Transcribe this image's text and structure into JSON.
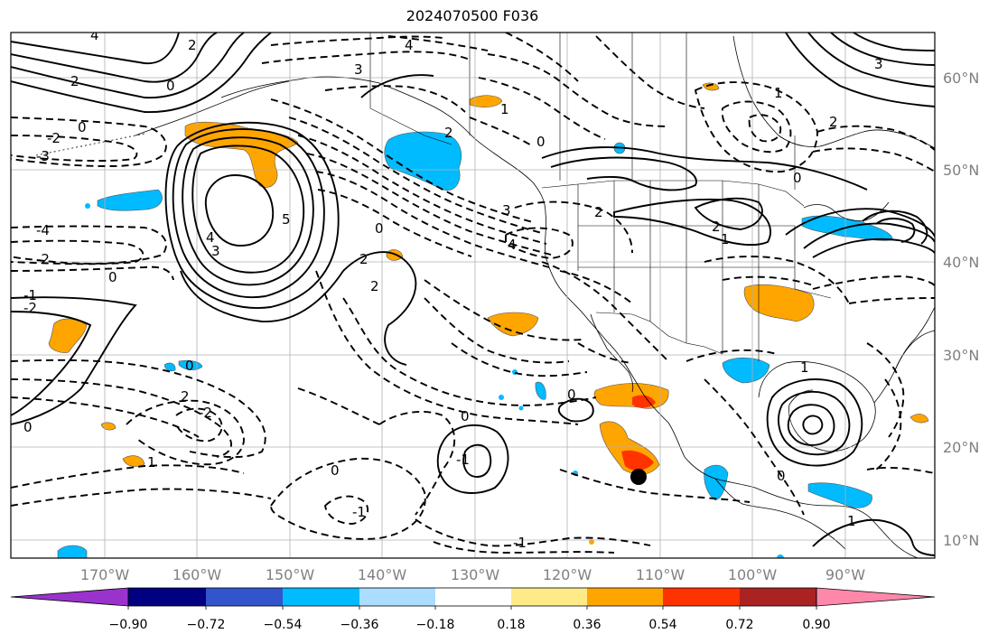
{
  "title": "2024070500 F036",
  "lat_labels": [
    "60°N",
    "50°N",
    "40°N",
    "30°N",
    "20°N",
    "10°N"
  ],
  "lon_labels": [
    "170°W",
    "160°W",
    "150°W",
    "140°W",
    "130°W",
    "120°W",
    "110°W",
    "100°W",
    "90°W"
  ],
  "colorbar": {
    "ticks": [
      "−0.90",
      "−0.72",
      "−0.54",
      "−0.36",
      "−0.18",
      "0.18",
      "0.36",
      "0.54",
      "0.72",
      "0.90"
    ],
    "colors": [
      "#9933cc",
      "#000080",
      "#3355cc",
      "#00bbff",
      "#aaddff",
      "#ffffff",
      "#ffea88",
      "#ffa500",
      "#ff3300",
      "#aa2222",
      "#ff88aa"
    ]
  },
  "contour_labels": [
    "4",
    "2",
    "0",
    "2",
    "3",
    "4",
    "3",
    "1",
    "0",
    "-2",
    "-3",
    "4",
    "3",
    "5",
    "0",
    "2",
    "2",
    "3",
    "4",
    "0",
    "2",
    "1",
    "2",
    "-4",
    "-2",
    "0",
    "-1",
    "-2",
    "0",
    "2",
    "2",
    "1",
    "1",
    "0",
    "0",
    "-1",
    "-1",
    "0",
    "-1",
    "2",
    "0",
    "0",
    "1",
    "-2",
    "0",
    "1"
  ]
}
